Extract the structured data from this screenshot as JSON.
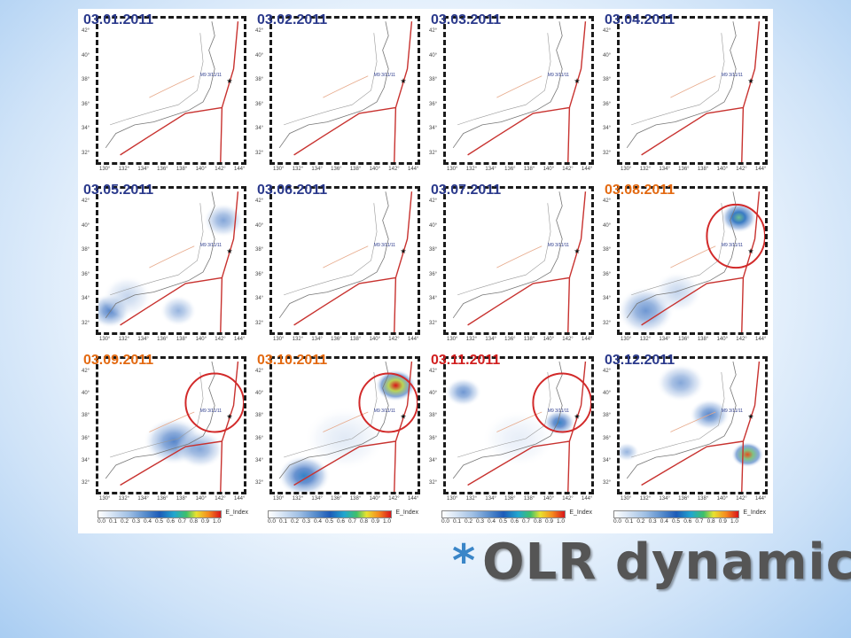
{
  "slide": {
    "title_bullet": "*",
    "title": "OLR dynamics"
  },
  "figure": {
    "epicenter_label": "M9 3/11/11",
    "y_ticks": [
      "42°",
      "40°",
      "38°",
      "36°",
      "34°",
      "32°"
    ],
    "x_ticks": [
      "130°",
      "132°",
      "134°",
      "136°",
      "138°",
      "140°",
      "142°",
      "144°"
    ],
    "colorbar": {
      "label": "E_Index",
      "ticks": [
        "0.0",
        "0.1",
        "0.2",
        "0.3",
        "0.4",
        "0.5",
        "0.6",
        "0.7",
        "0.8",
        "0.9",
        "1.0"
      ]
    },
    "panels": [
      {
        "date": "03.01.2011",
        "highlight": "none",
        "circled": false
      },
      {
        "date": "03.02.2011",
        "highlight": "none",
        "circled": false
      },
      {
        "date": "03.03.2011",
        "highlight": "none",
        "circled": false
      },
      {
        "date": "03.04.2011",
        "highlight": "none",
        "circled": false
      },
      {
        "date": "03.05.2011",
        "highlight": "none",
        "circled": false
      },
      {
        "date": "03.06.2011",
        "highlight": "none",
        "circled": false
      },
      {
        "date": "03.07.2011",
        "highlight": "none",
        "circled": false
      },
      {
        "date": "03.08.2011",
        "highlight": "orange",
        "circled": true
      },
      {
        "date": "03.09.2011",
        "highlight": "orange",
        "circled": true
      },
      {
        "date": "03.10.2011",
        "highlight": "orange",
        "circled": true
      },
      {
        "date": "03.11.2011",
        "highlight": "red",
        "circled": true
      },
      {
        "date": "03.12.2011",
        "highlight": "none",
        "circled": false
      }
    ]
  },
  "colors": {
    "date_default": "#2b3a8c",
    "date_orange": "#e36a12",
    "date_red": "#d11f1f",
    "circle": "#d22a2a",
    "plate_boundary": "#c8322f",
    "title_star": "#3a86c8",
    "title_text": "#555555"
  }
}
